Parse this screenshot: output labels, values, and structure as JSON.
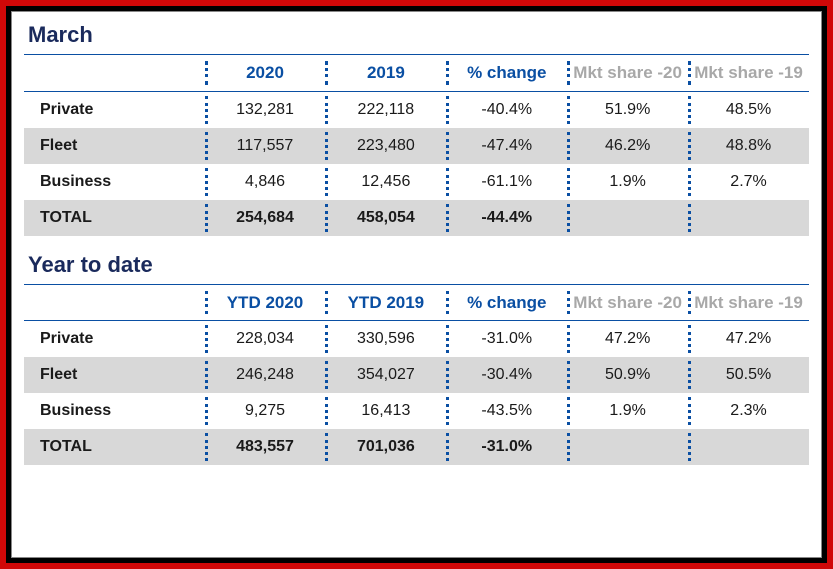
{
  "colors": {
    "border_outer": "#d00808",
    "heading": "#1a2a5c",
    "header_text": "#0a4fa3",
    "header_muted": "#a8a8a8",
    "row_shade": "#d8d8d8",
    "dot_separator": "#0a4fa3",
    "rule": "#0a4fa3"
  },
  "typography": {
    "title_fontsize_pt": 17,
    "header_fontsize_pt": 13,
    "cell_fontsize_pt": 12,
    "font_family": "Arial"
  },
  "march": {
    "title": "March",
    "type": "table",
    "columns": [
      "",
      "2020",
      "2019",
      "% change",
      "Mkt share -20",
      "Mkt share -19"
    ],
    "column_muted": [
      false,
      false,
      false,
      false,
      true,
      true
    ],
    "rows": [
      {
        "label": "Private",
        "v2020": "132,281",
        "v2019": "222,118",
        "pct": "-40.4%",
        "s20": "51.9%",
        "s19": "48.5%",
        "shade": false
      },
      {
        "label": "Fleet",
        "v2020": "117,557",
        "v2019": "223,480",
        "pct": "-47.4%",
        "s20": "46.2%",
        "s19": "48.8%",
        "shade": true
      },
      {
        "label": "Business",
        "v2020": "4,846",
        "v2019": "12,456",
        "pct": "-61.1%",
        "s20": "1.9%",
        "s19": "2.7%",
        "shade": false
      },
      {
        "label": "TOTAL",
        "v2020": "254,684",
        "v2019": "458,054",
        "pct": "-44.4%",
        "s20": "",
        "s19": "",
        "shade": true,
        "total": true
      }
    ]
  },
  "ytd": {
    "title": "Year to date",
    "type": "table",
    "columns": [
      "",
      "YTD 2020",
      "YTD 2019",
      "% change",
      "Mkt share -20",
      "Mkt share -19"
    ],
    "column_muted": [
      false,
      false,
      false,
      false,
      true,
      true
    ],
    "rows": [
      {
        "label": "Private",
        "v2020": "228,034",
        "v2019": "330,596",
        "pct": "-31.0%",
        "s20": "47.2%",
        "s19": "47.2%",
        "shade": false
      },
      {
        "label": "Fleet",
        "v2020": "246,248",
        "v2019": "354,027",
        "pct": "-30.4%",
        "s20": "50.9%",
        "s19": "50.5%",
        "shade": true
      },
      {
        "label": "Business",
        "v2020": "9,275",
        "v2019": "16,413",
        "pct": "-43.5%",
        "s20": "1.9%",
        "s19": "2.3%",
        "shade": false
      },
      {
        "label": "TOTAL",
        "v2020": "483,557",
        "v2019": "701,036",
        "pct": "-31.0%",
        "s20": "",
        "s19": "",
        "shade": true,
        "total": true
      }
    ]
  }
}
